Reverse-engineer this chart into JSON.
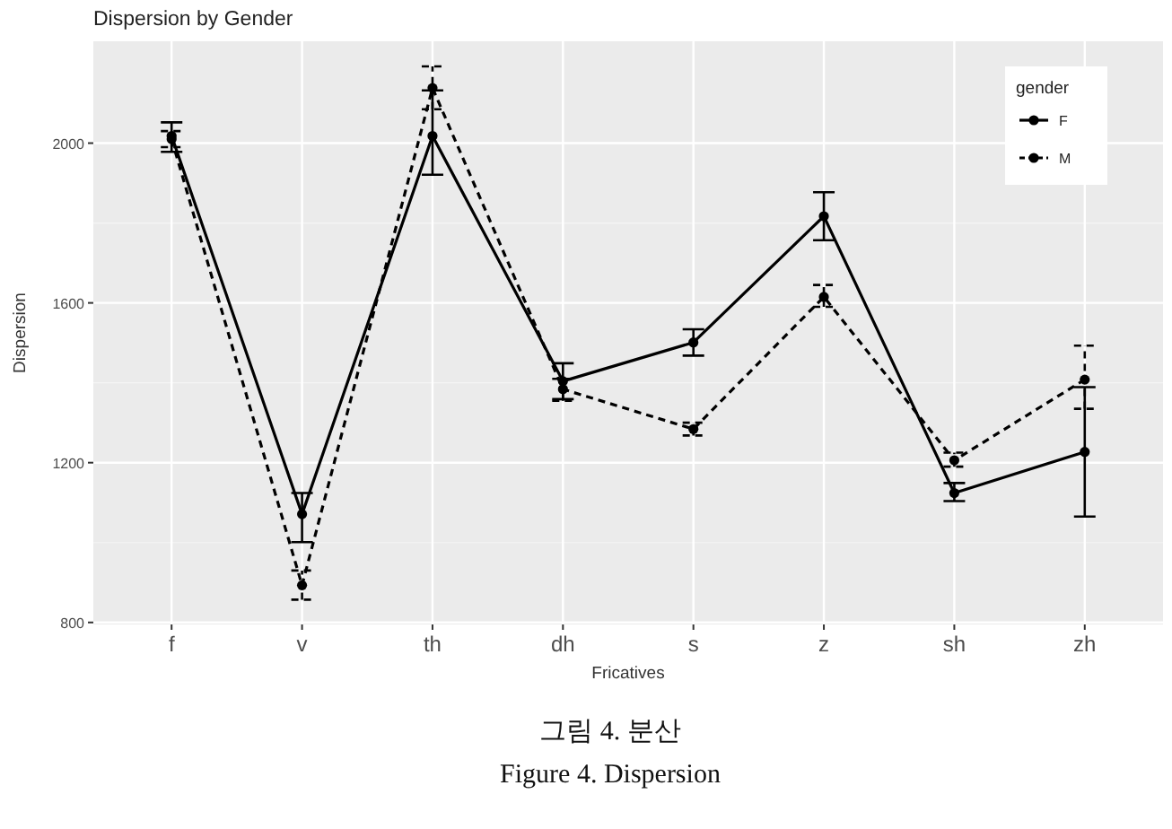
{
  "chart_data": {
    "type": "line",
    "title": "Dispersion by Gender",
    "xlabel": "Fricatives",
    "ylabel": "Dispersion",
    "legend_title": "gender",
    "categories": [
      "f",
      "v",
      "th",
      "dh",
      "s",
      "z",
      "sh",
      "zh"
    ],
    "series": [
      {
        "name": "F",
        "color": "#000000",
        "line_style": "solid",
        "values": [
          2018,
          1071,
          2018,
          1404,
          1501,
          1817,
          1124,
          1227
        ],
        "errors": [
          [
            1978,
            2052
          ],
          [
            1001,
            1124
          ],
          [
            1921,
            2132
          ],
          [
            1359,
            1449
          ],
          [
            1468,
            1534
          ],
          [
            1757,
            1877
          ],
          [
            1104,
            1149
          ],
          [
            1065,
            1389
          ]
        ]
      },
      {
        "name": "M",
        "color": "#000000",
        "line_style": "dashed",
        "values": [
          2010,
          893,
          2138,
          1384,
          1284,
          1615,
          1206,
          1408
        ],
        "errors": [
          [
            1990,
            2030
          ],
          [
            857,
            930
          ],
          [
            2085,
            2192
          ],
          [
            1355,
            1410
          ],
          [
            1268,
            1300
          ],
          [
            1590,
            1645
          ],
          [
            1190,
            1225
          ],
          [
            1335,
            1493
          ]
        ]
      }
    ],
    "ylim": [
      795,
      2255
    ],
    "yticks": [
      800,
      1200,
      1600,
      2000
    ],
    "grid": true,
    "legend": "top right",
    "marker": "circle",
    "annotations": [
      "그림 4. 분산",
      "Figure 4. Dispersion"
    ]
  }
}
